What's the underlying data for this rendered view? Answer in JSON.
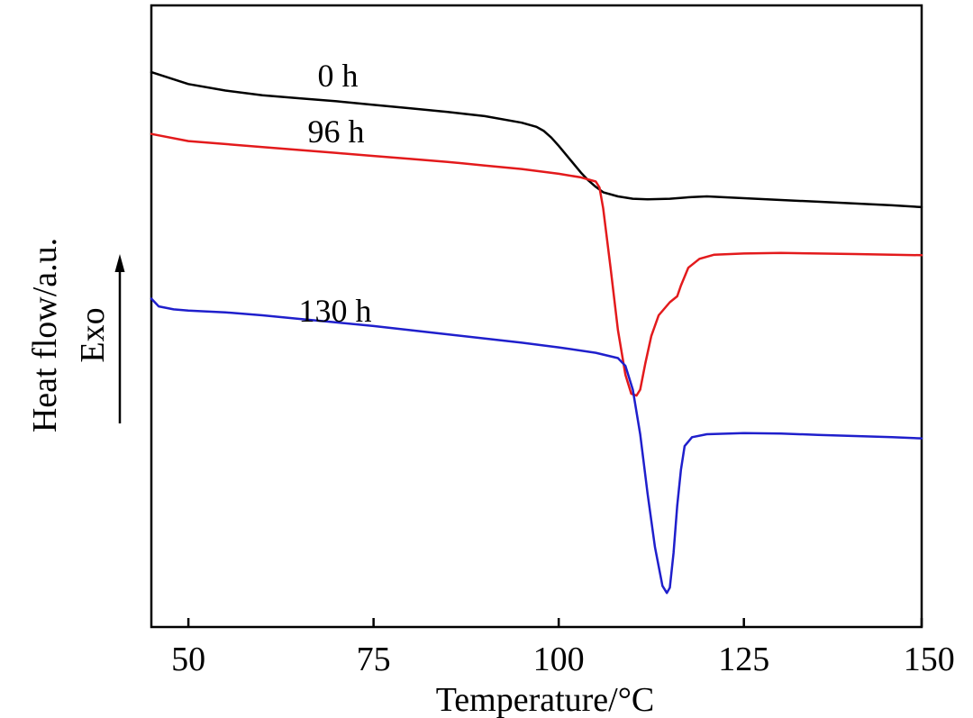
{
  "chart_data": {
    "type": "line",
    "title": "",
    "xlabel": "Temperature/°C",
    "ylabel": "Heat flow/a.u.",
    "ylabel_secondary": "Exo",
    "xlim": [
      45,
      149
    ],
    "ylim": [
      0,
      100
    ],
    "xticks": [
      50,
      75,
      100,
      125,
      150
    ],
    "grid": false,
    "legend": "none",
    "series": [
      {
        "name": "0 h",
        "color": "#000000",
        "points": [
          [
            45,
            90.9
          ],
          [
            50,
            88.9
          ],
          [
            55,
            87.8
          ],
          [
            60,
            87.0
          ],
          [
            65,
            86.5
          ],
          [
            70,
            86.0
          ],
          [
            75,
            85.4
          ],
          [
            80,
            84.8
          ],
          [
            85,
            84.2
          ],
          [
            90,
            83.5
          ],
          [
            95,
            82.4
          ],
          [
            97,
            81.7
          ],
          [
            98,
            81.0
          ],
          [
            99,
            79.9
          ],
          [
            100,
            78.5
          ],
          [
            101,
            77.0
          ],
          [
            102,
            75.5
          ],
          [
            103,
            74.0
          ],
          [
            104,
            72.7
          ],
          [
            105,
            71.6
          ],
          [
            106,
            70.7
          ],
          [
            108,
            70.0
          ],
          [
            110,
            69.6
          ],
          [
            112,
            69.5
          ],
          [
            115,
            69.6
          ],
          [
            118,
            69.9
          ],
          [
            120,
            70.0
          ],
          [
            125,
            69.7
          ],
          [
            130,
            69.4
          ],
          [
            135,
            69.1
          ],
          [
            140,
            68.8
          ],
          [
            145,
            68.5
          ],
          [
            149,
            68.2
          ]
        ]
      },
      {
        "name": "96 h",
        "color": "#e31a1c",
        "points": [
          [
            45,
            80.5
          ],
          [
            50,
            79.3
          ],
          [
            55,
            78.8
          ],
          [
            60,
            78.3
          ],
          [
            65,
            77.8
          ],
          [
            70,
            77.3
          ],
          [
            75,
            76.8
          ],
          [
            80,
            76.3
          ],
          [
            85,
            75.8
          ],
          [
            90,
            75.2
          ],
          [
            95,
            74.6
          ],
          [
            100,
            73.8
          ],
          [
            103,
            73.2
          ],
          [
            105,
            72.5
          ],
          [
            105.5,
            71.5
          ],
          [
            106,
            68.0
          ],
          [
            107,
            58.0
          ],
          [
            108,
            47.5
          ],
          [
            109,
            40.0
          ],
          [
            109.8,
            36.8
          ],
          [
            110.5,
            36.5
          ],
          [
            111,
            37.5
          ],
          [
            111.7,
            42.0
          ],
          [
            112.5,
            46.5
          ],
          [
            113.5,
            50.0
          ],
          [
            115,
            52.2
          ],
          [
            116,
            53.2
          ],
          [
            116.5,
            55.0
          ],
          [
            117.5,
            58.0
          ],
          [
            119,
            59.5
          ],
          [
            121,
            60.2
          ],
          [
            125,
            60.4
          ],
          [
            130,
            60.5
          ],
          [
            135,
            60.4
          ],
          [
            140,
            60.3
          ],
          [
            145,
            60.2
          ],
          [
            149,
            60.1
          ]
        ]
      },
      {
        "name": "130 h",
        "color": "#1f1fcc",
        "points": [
          [
            45,
            52.8
          ],
          [
            46,
            51.5
          ],
          [
            48,
            51.0
          ],
          [
            50,
            50.8
          ],
          [
            55,
            50.5
          ],
          [
            60,
            50.0
          ],
          [
            65,
            49.4
          ],
          [
            70,
            48.8
          ],
          [
            75,
            48.2
          ],
          [
            80,
            47.5
          ],
          [
            85,
            46.8
          ],
          [
            90,
            46.1
          ],
          [
            95,
            45.4
          ],
          [
            100,
            44.6
          ],
          [
            105,
            43.7
          ],
          [
            108,
            42.8
          ],
          [
            109,
            41.5
          ],
          [
            110,
            37.5
          ],
          [
            111,
            30.0
          ],
          [
            112,
            20.0
          ],
          [
            113,
            11.0
          ],
          [
            114,
            4.5
          ],
          [
            114.6,
            3.3
          ],
          [
            115,
            4.2
          ],
          [
            115.5,
            10.0
          ],
          [
            116,
            18.0
          ],
          [
            116.5,
            24.0
          ],
          [
            117,
            28.0
          ],
          [
            118,
            29.5
          ],
          [
            120,
            30.0
          ],
          [
            125,
            30.2
          ],
          [
            130,
            30.1
          ],
          [
            135,
            29.9
          ],
          [
            140,
            29.7
          ],
          [
            145,
            29.5
          ],
          [
            149,
            29.3
          ]
        ]
      }
    ]
  }
}
